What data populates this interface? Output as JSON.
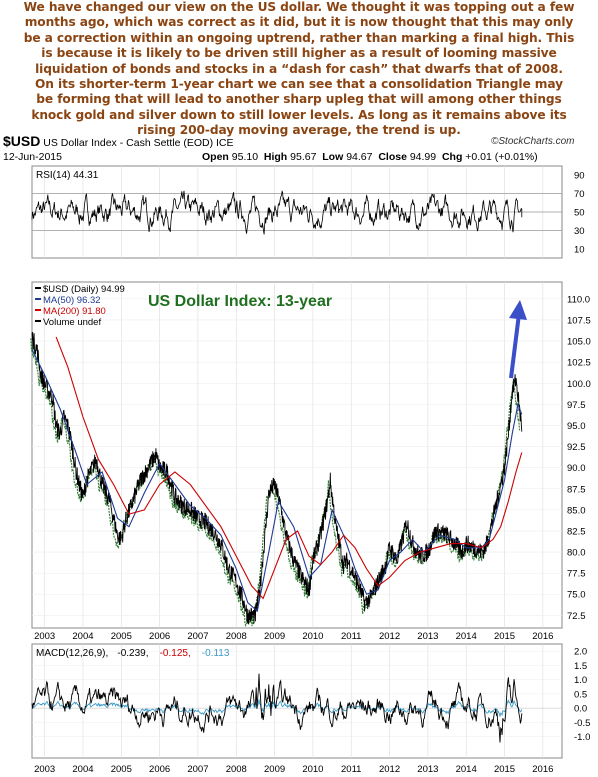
{
  "commentary": [
    "We have changed our view on the US dollar. We thought it was topping out a few",
    "months ago, which was correct as it did, but it is now thought that this may only",
    "be a correction within an ongoing uptrend, rather than marking a final high. This",
    "is because it is likely to be driven still higher as a result of looming massive",
    "liquidation of bonds and stocks in a “dash for cash” that dwarfs that of 2008.",
    "On its shorter-term 1-year chart we can see that a consolidation Triangle may",
    "be forming that will lead to another sharp upleg that will among other things",
    "knock gold and silver down to still lower levels. As long as it remains above its",
    "rising 200-day moving average, the trend is up."
  ],
  "header": {
    "symbol": "$USD",
    "name": "US Dollar Index - Cash Settle (EOD) ICE",
    "date": "12-Jun-2015",
    "open_label": "Open",
    "open": "95.10",
    "high_label": "High",
    "high": "95.67",
    "low_label": "Low",
    "low": "94.67",
    "close_label": "Close",
    "close": "94.99",
    "chg_label": "Chg",
    "chg": "+0.01 (+0.01%)",
    "source": "©StockCharts.com"
  },
  "colors": {
    "price": "#000000",
    "ma50": "#1f3a93",
    "ma200": "#cc0000",
    "volume": "#2e7d32",
    "title": "#1f6f1f",
    "arrow": "#3a4fc8",
    "macd_signal": "#cc0000",
    "histogram": "#3a9bc8",
    "commentary": "#8B4513"
  },
  "chart_data": [
    {
      "type": "line",
      "panel": "rsi",
      "legend": "RSI(14) 44.31",
      "ylim": [
        0,
        100
      ],
      "y_ticks": [
        10,
        30,
        50,
        70,
        90
      ],
      "guides": [
        30,
        50,
        70
      ],
      "last": 44.31,
      "note": "oscillates mostly between 30 and 70"
    },
    {
      "type": "line",
      "panel": "price",
      "title": "US Dollar Index: 13-year",
      "legend": [
        "$USD (Daily) 94.99",
        "MA(50) 96.32",
        "MA(200) 91.80",
        "Volume undef"
      ],
      "x_ticks": [
        "2003",
        "2004",
        "2005",
        "2006",
        "2007",
        "2008",
        "2009",
        "2010",
        "2011",
        "2012",
        "2013",
        "2014",
        "2015",
        "2016"
      ],
      "xlim": [
        2002.67,
        2016.5
      ],
      "ylim": [
        71,
        112
      ],
      "y_ticks": [
        72.5,
        75.0,
        77.5,
        80.0,
        82.5,
        85.0,
        87.5,
        90.0,
        92.5,
        95.0,
        97.5,
        100.0,
        102.5,
        105.0,
        107.5,
        110.0
      ],
      "series": [
        {
          "name": "$USD (Daily)",
          "x": [
            2002.67,
            2002.8,
            2002.9,
            2003.0,
            2003.1,
            2003.2,
            2003.3,
            2003.4,
            2003.5,
            2003.6,
            2003.7,
            2003.8,
            2003.9,
            2004.0,
            2004.1,
            2004.2,
            2004.35,
            2004.5,
            2004.7,
            2004.9,
            2005.0,
            2005.1,
            2005.3,
            2005.5,
            2005.7,
            2005.9,
            2006.0,
            2006.2,
            2006.4,
            2006.6,
            2006.8,
            2007.0,
            2007.2,
            2007.4,
            2007.6,
            2007.8,
            2008.0,
            2008.2,
            2008.3,
            2008.5,
            2008.6,
            2008.75,
            2008.85,
            2009.0,
            2009.15,
            2009.3,
            2009.5,
            2009.7,
            2009.9,
            2010.0,
            2010.2,
            2010.4,
            2010.45,
            2010.6,
            2010.8,
            2010.9,
            2011.0,
            2011.2,
            2011.35,
            2011.5,
            2011.7,
            2011.9,
            2012.0,
            2012.2,
            2012.45,
            2012.6,
            2012.8,
            2013.0,
            2013.2,
            2013.5,
            2013.7,
            2013.9,
            2014.0,
            2014.2,
            2014.4,
            2014.5,
            2014.6,
            2014.7,
            2014.8,
            2014.9,
            2015.0,
            2015.1,
            2015.2,
            2015.3,
            2015.4,
            2015.45
          ],
          "values": [
            105.5,
            104,
            101,
            100,
            99,
            98.5,
            95,
            94,
            96,
            95,
            93,
            90,
            88,
            86.5,
            88.5,
            89.5,
            91,
            88,
            86,
            82,
            81.5,
            83.5,
            86,
            88.5,
            90,
            91.5,
            90,
            89.5,
            86.5,
            85.5,
            85,
            84,
            83.5,
            82.5,
            81,
            78,
            76.5,
            74,
            72.5,
            72.5,
            75,
            82,
            87,
            88,
            85.5,
            82,
            79,
            77,
            75.5,
            79,
            82,
            86.5,
            88.5,
            83,
            78.5,
            79,
            78,
            76,
            74,
            74.5,
            76.5,
            78.5,
            80.5,
            79,
            83.5,
            81,
            79.5,
            80,
            82.5,
            82,
            81,
            80,
            81,
            80.5,
            80,
            80.5,
            82,
            84,
            86,
            88,
            90,
            94,
            99,
            100.5,
            96.5,
            94.99
          ]
        },
        {
          "name": "MA(50)",
          "x": [
            2002.67,
            2003.0,
            2003.4,
            2003.8,
            2004.1,
            2004.5,
            2004.9,
            2005.2,
            2005.6,
            2006.0,
            2006.4,
            2006.8,
            2007.2,
            2007.6,
            2008.0,
            2008.3,
            2008.55,
            2008.85,
            2009.1,
            2009.5,
            2009.9,
            2010.2,
            2010.5,
            2010.8,
            2011.1,
            2011.4,
            2011.7,
            2012.0,
            2012.3,
            2012.6,
            2012.9,
            2013.3,
            2013.7,
            2014.0,
            2014.4,
            2014.6,
            2014.8,
            2015.0,
            2015.2,
            2015.35,
            2015.45
          ],
          "values": [
            104,
            101,
            97,
            92,
            88,
            89.5,
            84,
            83,
            87,
            90.5,
            88,
            85.5,
            84,
            82,
            78,
            74,
            73,
            80,
            86,
            83,
            77,
            78.5,
            85,
            82,
            78,
            75,
            75.5,
            79,
            80,
            81.5,
            80,
            82,
            81.5,
            80.5,
            80.5,
            81.5,
            85,
            88.5,
            94,
            97.5,
            96.32
          ]
        },
        {
          "name": "MA(200)",
          "x": [
            2003.3,
            2003.6,
            2004.0,
            2004.4,
            2004.8,
            2005.2,
            2005.6,
            2006.0,
            2006.4,
            2006.8,
            2007.2,
            2007.6,
            2008.0,
            2008.4,
            2008.7,
            2009.0,
            2009.3,
            2009.6,
            2009.9,
            2010.2,
            2010.5,
            2010.8,
            2011.1,
            2011.4,
            2011.7,
            2012.0,
            2012.4,
            2012.8,
            2013.2,
            2013.6,
            2014.0,
            2014.4,
            2014.7,
            2014.9,
            2015.1,
            2015.3,
            2015.45
          ],
          "values": [
            105.5,
            102,
            96,
            91,
            88,
            84.5,
            85,
            88,
            89.5,
            88,
            85.5,
            83,
            79.5,
            76,
            74.5,
            78,
            81.5,
            82.5,
            79.5,
            78.5,
            80,
            82,
            80.5,
            78,
            76,
            77,
            79,
            80,
            80.5,
            81,
            81,
            80.5,
            81.5,
            83,
            86,
            89.5,
            91.8
          ]
        }
      ]
    },
    {
      "type": "line",
      "panel": "macd",
      "legend": [
        "MACD(12,26,9)",
        "-0.239",
        "-0.125",
        "-0.113"
      ],
      "ylim": [
        -1.75,
        2.25
      ],
      "y_ticks": [
        -1.0,
        -0.5,
        0.0,
        0.5,
        1.0,
        1.5,
        2.0
      ],
      "x_ticks": [
        "2003",
        "2004",
        "2005",
        "2006",
        "2007",
        "2008",
        "2009",
        "2010",
        "2011",
        "2012",
        "2013",
        "2014",
        "2015",
        "2016"
      ],
      "values": {
        "macd": -0.239,
        "signal": -0.125,
        "histogram": -0.113
      }
    }
  ]
}
